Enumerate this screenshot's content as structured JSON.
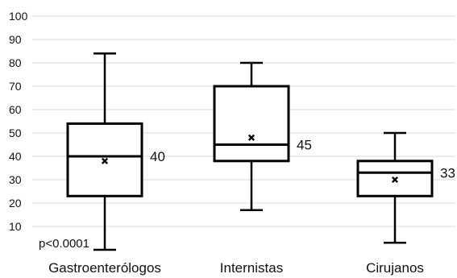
{
  "chart_data": {
    "type": "box",
    "title": "",
    "xlabel": "",
    "ylabel": "",
    "ylim": [
      0,
      100
    ],
    "yticks": [
      10,
      20,
      30,
      40,
      50,
      60,
      70,
      80,
      90,
      100
    ],
    "grid": true,
    "categories": [
      "Gastroenterólogos",
      "Internistas",
      "Cirujanos"
    ],
    "boxes": [
      {
        "category": "Gastroenterólogos",
        "min": 0,
        "q1": 23,
        "median": 40,
        "q3": 54,
        "max": 84,
        "mean": 38,
        "median_label": "40"
      },
      {
        "category": "Internistas",
        "min": 17,
        "q1": 38,
        "median": 45,
        "q3": 70,
        "max": 80,
        "mean": 48,
        "median_label": "45"
      },
      {
        "category": "Cirujanos",
        "min": 3,
        "q1": 23,
        "median": 33,
        "q3": 38,
        "max": 50,
        "mean": 30,
        "median_label": "33"
      }
    ],
    "annotations": [
      {
        "text": "p<0.0001"
      }
    ],
    "colors": {
      "box_stroke": "#000000",
      "grid": "#d9d9d9",
      "text": "#111111"
    }
  }
}
